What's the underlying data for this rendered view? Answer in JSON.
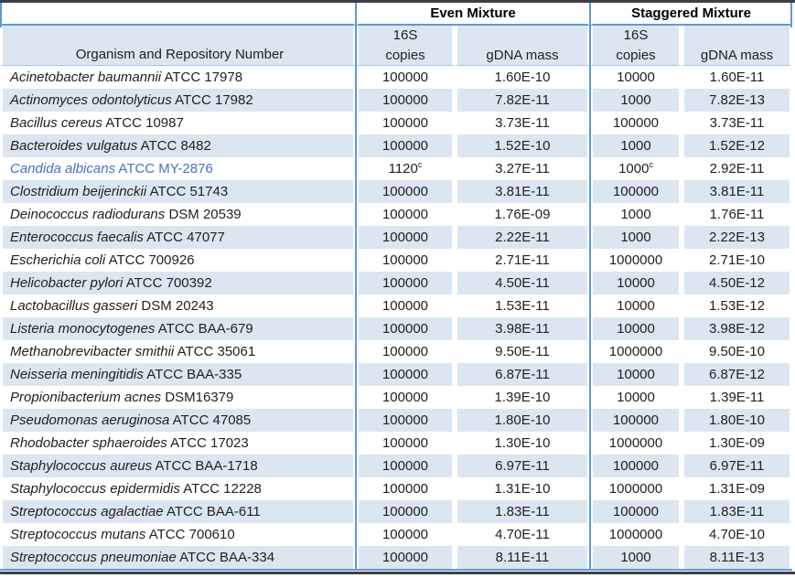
{
  "table": {
    "column_groups": [
      {
        "label": "Even Mixture"
      },
      {
        "label": "Staggered Mixture"
      }
    ],
    "headers": {
      "organism": "Organism and Repository Number",
      "subheader_16s": "16S",
      "copies": "copies",
      "gdna": "gDNA mass"
    },
    "rows": [
      {
        "species": "Acinetobacter baumannii",
        "repository": "ATCC 17978",
        "even_copies": "100000",
        "even_copies_sup": "",
        "even_gdna": "1.60E-10",
        "stag_copies": "10000",
        "stag_copies_sup": "",
        "stag_gdna": "1.60E-11",
        "highlight": false
      },
      {
        "species": "Actinomyces odontolyticus",
        "repository": "ATCC 17982",
        "even_copies": "100000",
        "even_copies_sup": "",
        "even_gdna": "7.82E-11",
        "stag_copies": "1000",
        "stag_copies_sup": "",
        "stag_gdna": "7.82E-13",
        "highlight": false
      },
      {
        "species": "Bacillus cereus",
        "repository": "ATCC 10987",
        "even_copies": "100000",
        "even_copies_sup": "",
        "even_gdna": "3.73E-11",
        "stag_copies": "100000",
        "stag_copies_sup": "",
        "stag_gdna": "3.73E-11",
        "highlight": false
      },
      {
        "species": "Bacteroides vulgatus",
        "repository": "ATCC 8482",
        "even_copies": "100000",
        "even_copies_sup": "",
        "even_gdna": "1.52E-10",
        "stag_copies": "1000",
        "stag_copies_sup": "",
        "stag_gdna": "1.52E-12",
        "highlight": false
      },
      {
        "species": "Candida albicans",
        "repository": "ATCC MY-2876",
        "even_copies": "1120",
        "even_copies_sup": "c",
        "even_gdna": "3.27E-11",
        "stag_copies": "1000",
        "stag_copies_sup": "c",
        "stag_gdna": "2.92E-11",
        "highlight": true
      },
      {
        "species": "Clostridium beijerinckii",
        "repository": "ATCC 51743",
        "even_copies": "100000",
        "even_copies_sup": "",
        "even_gdna": "3.81E-11",
        "stag_copies": "100000",
        "stag_copies_sup": "",
        "stag_gdna": "3.81E-11",
        "highlight": false
      },
      {
        "species": "Deinococcus radiodurans",
        "repository": "DSM 20539",
        "even_copies": "100000",
        "even_copies_sup": "",
        "even_gdna": "1.76E-09",
        "stag_copies": "1000",
        "stag_copies_sup": "",
        "stag_gdna": "1.76E-11",
        "highlight": false
      },
      {
        "species": "Enterococcus faecalis",
        "repository": "ATCC 47077",
        "even_copies": "100000",
        "even_copies_sup": "",
        "even_gdna": "2.22E-11",
        "stag_copies": "1000",
        "stag_copies_sup": "",
        "stag_gdna": "2.22E-13",
        "highlight": false
      },
      {
        "species": "Escherichia coli",
        "repository": "ATCC 700926",
        "even_copies": "100000",
        "even_copies_sup": "",
        "even_gdna": "2.71E-11",
        "stag_copies": "1000000",
        "stag_copies_sup": "",
        "stag_gdna": "2.71E-10",
        "highlight": false
      },
      {
        "species": "Helicobacter pylori",
        "repository": "ATCC 700392",
        "even_copies": "100000",
        "even_copies_sup": "",
        "even_gdna": "4.50E-11",
        "stag_copies": "10000",
        "stag_copies_sup": "",
        "stag_gdna": "4.50E-12",
        "highlight": false
      },
      {
        "species": "Lactobacillus gasseri",
        "repository": "DSM 20243",
        "even_copies": "100000",
        "even_copies_sup": "",
        "even_gdna": "1.53E-11",
        "stag_copies": "10000",
        "stag_copies_sup": "",
        "stag_gdna": "1.53E-12",
        "highlight": false
      },
      {
        "species": "Listeria monocytogenes",
        "repository": "ATCC BAA-679",
        "even_copies": "100000",
        "even_copies_sup": "",
        "even_gdna": "3.98E-11",
        "stag_copies": "10000",
        "stag_copies_sup": "",
        "stag_gdna": "3.98E-12",
        "highlight": false
      },
      {
        "species": "Methanobrevibacter smithii",
        "repository": "ATCC 35061",
        "even_copies": "100000",
        "even_copies_sup": "",
        "even_gdna": "9.50E-11",
        "stag_copies": "1000000",
        "stag_copies_sup": "",
        "stag_gdna": "9.50E-10",
        "highlight": false
      },
      {
        "species": "Neisseria meningitidis",
        "repository": "ATCC BAA-335",
        "even_copies": "100000",
        "even_copies_sup": "",
        "even_gdna": "6.87E-11",
        "stag_copies": "10000",
        "stag_copies_sup": "",
        "stag_gdna": "6.87E-12",
        "highlight": false
      },
      {
        "species": "Propionibacterium acnes",
        "repository": "DSM16379",
        "even_copies": "100000",
        "even_copies_sup": "",
        "even_gdna": "1.39E-10",
        "stag_copies": "10000",
        "stag_copies_sup": "",
        "stag_gdna": "1.39E-11",
        "highlight": false
      },
      {
        "species": "Pseudomonas aeruginosa",
        "repository": "ATCC 47085",
        "even_copies": "100000",
        "even_copies_sup": "",
        "even_gdna": "1.80E-10",
        "stag_copies": "100000",
        "stag_copies_sup": "",
        "stag_gdna": "1.80E-10",
        "highlight": false
      },
      {
        "species": "Rhodobacter sphaeroides",
        "repository": "ATCC 17023",
        "even_copies": "100000",
        "even_copies_sup": "",
        "even_gdna": "1.30E-10",
        "stag_copies": "1000000",
        "stag_copies_sup": "",
        "stag_gdna": "1.30E-09",
        "highlight": false
      },
      {
        "species": "Staphylococcus aureus",
        "repository": "ATCC BAA-1718",
        "even_copies": "100000",
        "even_copies_sup": "",
        "even_gdna": "6.97E-11",
        "stag_copies": "100000",
        "stag_copies_sup": "",
        "stag_gdna": "6.97E-11",
        "highlight": false
      },
      {
        "species": "Staphylococcus epidermidis",
        "repository": "ATCC 12228",
        "even_copies": "100000",
        "even_copies_sup": "",
        "even_gdna": "1.31E-10",
        "stag_copies": "1000000",
        "stag_copies_sup": "",
        "stag_gdna": "1.31E-09",
        "highlight": false
      },
      {
        "species": "Streptococcus agalactiae",
        "repository": "ATCC BAA-611",
        "even_copies": "100000",
        "even_copies_sup": "",
        "even_gdna": "1.83E-11",
        "stag_copies": "100000",
        "stag_copies_sup": "",
        "stag_gdna": "1.83E-11",
        "highlight": false
      },
      {
        "species": "Streptococcus mutans",
        "repository": "ATCC 700610",
        "even_copies": "100000",
        "even_copies_sup": "",
        "even_gdna": "4.70E-11",
        "stag_copies": "1000000",
        "stag_copies_sup": "",
        "stag_gdna": "4.70E-10",
        "highlight": false
      },
      {
        "species": "Streptococcus pneumoniae",
        "repository": "ATCC BAA-334",
        "even_copies": "100000",
        "even_copies_sup": "",
        "even_gdna": "8.11E-11",
        "stag_copies": "1000",
        "stag_copies_sup": "",
        "stag_gdna": "8.11E-13",
        "highlight": false
      }
    ]
  },
  "colors": {
    "accent_border": "#5B9BD5",
    "row_shade": "#DCE6F1",
    "highlight_text": "#4472C4",
    "rule_dark": "#404040",
    "header_underline": "#A9C4E0",
    "text_color": "#212121"
  }
}
